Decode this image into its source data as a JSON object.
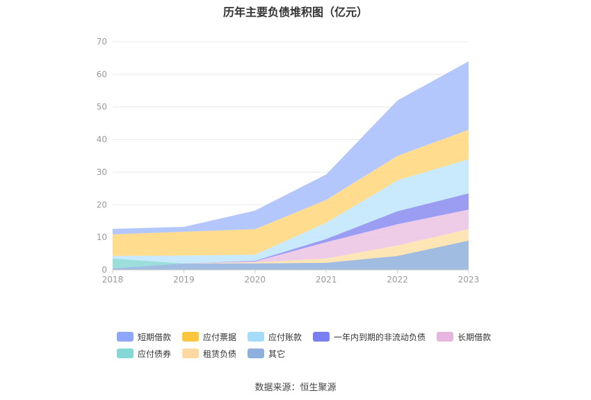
{
  "chart_data": {
    "type": "area",
    "stacked": true,
    "title": "历年主要负债堆积图（亿元）",
    "categories": [
      "2018",
      "2019",
      "2020",
      "2021",
      "2022",
      "2023"
    ],
    "ylim": [
      0,
      70
    ],
    "yticks": [
      0,
      10,
      20,
      30,
      40,
      50,
      60,
      70
    ],
    "grid": true,
    "legend_position": "bottom",
    "series": [
      {
        "name": "其它",
        "color": "#8fb0dc",
        "values": [
          0.5,
          2.0,
          2.0,
          2.2,
          4.3,
          9.0
        ]
      },
      {
        "name": "租赁负债",
        "color": "#fde0a8",
        "values": [
          0,
          0,
          0.3,
          1.3,
          3.2,
          3.5
        ]
      },
      {
        "name": "应付债券",
        "color": "#8ad8d6",
        "values": [
          3.0,
          0,
          0,
          0,
          0,
          0
        ]
      },
      {
        "name": "长期借款",
        "color": "#ebc3e3",
        "values": [
          0,
          0,
          0.3,
          5.0,
          6.5,
          6.0
        ]
      },
      {
        "name": "一年内到期的非流动负债",
        "color": "#8a8cf0",
        "values": [
          0,
          0,
          0.2,
          1.0,
          4.0,
          5.0
        ]
      },
      {
        "name": "应付账款",
        "color": "#bfe6fb",
        "values": [
          0.8,
          2.4,
          1.9,
          5.0,
          9.5,
          10.5
        ]
      },
      {
        "name": "应付票据",
        "color": "#ffd67a",
        "values": [
          6.6,
          7.3,
          7.8,
          7.0,
          7.5,
          9.0
        ]
      },
      {
        "name": "短期借款",
        "color": "#a7bdfc",
        "values": [
          1.7,
          1.5,
          5.7,
          7.8,
          17.0,
          21.0
        ]
      }
    ]
  },
  "legend": {
    "row1": [
      {
        "label": "短期借款",
        "color": "#8ea6fb"
      },
      {
        "label": "应付票据",
        "color": "#fbc53e"
      },
      {
        "label": "应付账款",
        "color": "#a5dcf9"
      },
      {
        "label": "一年内到期的非流动负债",
        "color": "#7b7ef0"
      },
      {
        "label": "长期借款",
        "color": "#e7b6de"
      }
    ],
    "row2": [
      {
        "label": "应付债券",
        "color": "#84d8d6"
      },
      {
        "label": "租赁负债",
        "color": "#fdd8a0"
      },
      {
        "label": "其它",
        "color": "#8fb0dc"
      }
    ]
  },
  "source_note": "数据来源：恒生聚源"
}
